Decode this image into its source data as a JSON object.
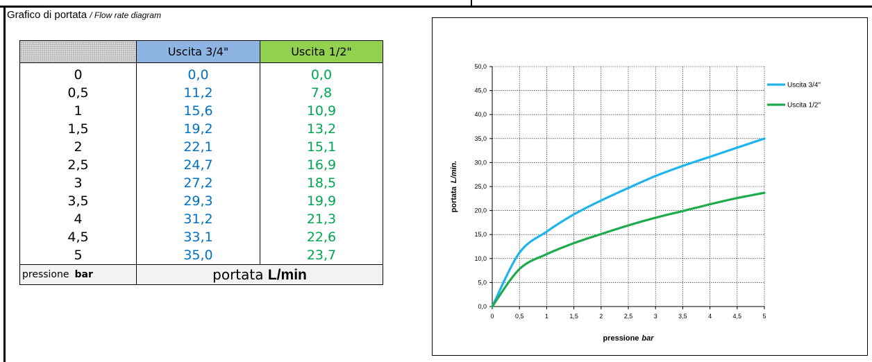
{
  "heading": {
    "title": "Grafico di portata",
    "subtitle": "/ Flow rate diagram"
  },
  "table": {
    "headers": [
      "Uscita 3/4\"",
      "Uscita 1/2\""
    ],
    "rows": [
      [
        "0",
        "0,0",
        "0,0"
      ],
      [
        "0,5",
        "11,2",
        "7,8"
      ],
      [
        "1",
        "15,6",
        "10,9"
      ],
      [
        "1,5",
        "19,2",
        "13,2"
      ],
      [
        "2",
        "22,1",
        "15,1"
      ],
      [
        "2,5",
        "24,7",
        "16,9"
      ],
      [
        "3",
        "27,2",
        "18,5"
      ],
      [
        "3,5",
        "29,3",
        "19,9"
      ],
      [
        "4",
        "31,2",
        "21,3"
      ],
      [
        "4,5",
        "33,1",
        "22,6"
      ],
      [
        "5",
        "35,0",
        "23,7"
      ]
    ],
    "footer": {
      "pressure_label": "pressione",
      "pressure_unit": "bar",
      "flow_label": "portata",
      "flow_unit": "L/min"
    }
  },
  "chart_data": {
    "type": "line",
    "x": [
      0,
      0.5,
      1,
      1.5,
      2,
      2.5,
      3,
      3.5,
      4,
      4.5,
      5
    ],
    "x_tick_labels": [
      "0",
      "0,5",
      "1",
      "1,5",
      "2",
      "2,5",
      "3",
      "3,5",
      "4",
      "4,5",
      "5"
    ],
    "y_tick_labels": [
      "0,0",
      "5,0",
      "10,0",
      "15,0",
      "20,0",
      "25,0",
      "30,0",
      "35,0",
      "40,0",
      "45,0",
      "50,0"
    ],
    "series": [
      {
        "name": "Uscita 3/4\"",
        "color": "#1fb4ec",
        "values": [
          0.0,
          11.2,
          15.6,
          19.2,
          22.1,
          24.7,
          27.2,
          29.3,
          31.2,
          33.1,
          35.0
        ]
      },
      {
        "name": "Uscita 1/2\"",
        "color": "#1eab4c",
        "values": [
          0.0,
          7.8,
          10.9,
          13.2,
          15.1,
          16.9,
          18.5,
          19.9,
          21.3,
          22.6,
          23.7
        ]
      }
    ],
    "xlabel": "pressione",
    "xlabel_unit": "bar",
    "ylabel": "portata",
    "ylabel_unit": "L/min.",
    "xlim": [
      0,
      5
    ],
    "ylim": [
      0,
      50
    ],
    "grid": true,
    "legend_position": "top-right"
  }
}
